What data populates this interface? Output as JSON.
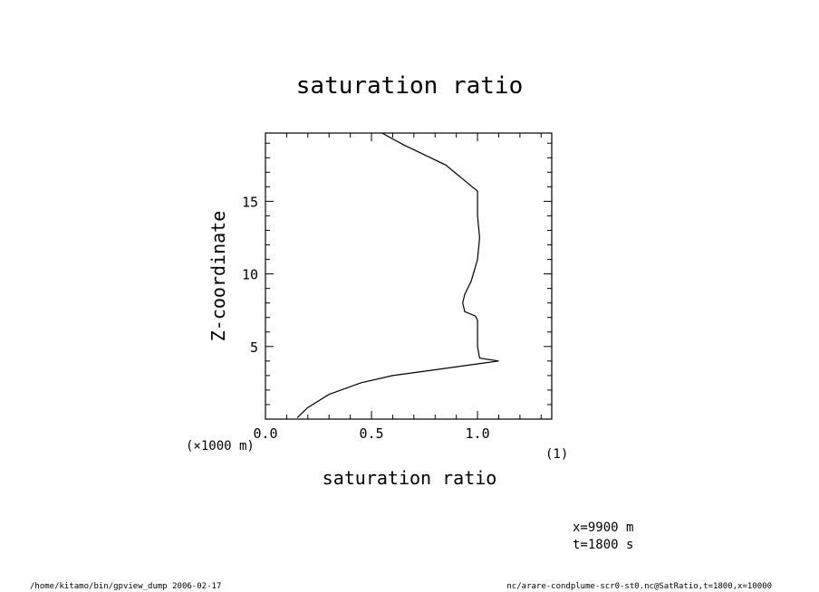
{
  "chart_data": {
    "type": "line",
    "title": "saturation ratio",
    "xlabel": "saturation ratio",
    "ylabel": "Z-coordinate",
    "x_unit": "(1)",
    "y_unit": "(×1000 m)",
    "xlim": [
      0.0,
      1.35
    ],
    "ylim": [
      0,
      19.7
    ],
    "x_ticks": [
      0.0,
      0.5,
      1.0
    ],
    "y_ticks": [
      5,
      10,
      15
    ],
    "x_tick_labels": [
      "0.0",
      "0.5",
      "1.0"
    ],
    "y_tick_labels": [
      "5",
      "10",
      "15"
    ],
    "grid": false,
    "series": [
      {
        "x": [
          0.15,
          0.2,
          0.3,
          0.45,
          0.6,
          0.8,
          1.0,
          1.1,
          1.01,
          1.0,
          1.0,
          0.99,
          0.94,
          0.93,
          0.94,
          0.97,
          1.0,
          1.01,
          1.0,
          1.0,
          0.85,
          0.65,
          0.55
        ],
        "y": [
          0.1,
          0.8,
          1.7,
          2.5,
          3.0,
          3.4,
          3.8,
          4.0,
          4.2,
          5.0,
          6.8,
          7.1,
          7.4,
          8.0,
          8.6,
          9.5,
          11.0,
          12.5,
          14.0,
          15.7,
          17.5,
          18.9,
          19.7
        ]
      }
    ]
  },
  "info": {
    "x_pos": "x=9900 m",
    "t_pos": "t=1800 s"
  },
  "footer": {
    "left": "/home/kitamo/bin/gpview_dump  2006-02-17",
    "right": "nc/arare-condplume-scr0-st0.nc@SatRatio,t=1800,x=10000"
  }
}
